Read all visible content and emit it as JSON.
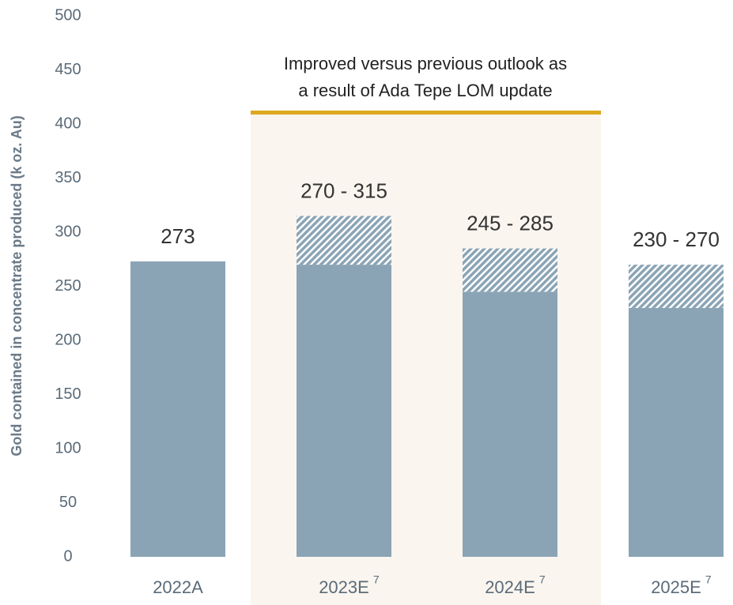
{
  "chart_data": {
    "type": "range_bar",
    "ylabel": "Gold contained in concentrate produced (k oz. Au)",
    "annotation": [
      "Improved versus previous outlook as",
      "a result of Ada Tepe LOM update"
    ],
    "categories": [
      "2022A",
      "2023E",
      "2024E",
      "2025E"
    ],
    "category_notes": [
      null,
      "7",
      "7",
      "7"
    ],
    "low": [
      273,
      270,
      245,
      230
    ],
    "high": [
      null,
      315,
      285,
      270
    ],
    "value_labels": [
      "273",
      "270 - 315",
      "245 - 285",
      "230 - 270"
    ],
    "color": "#8aa4b5",
    "ylim": [
      0,
      500
    ],
    "yticks": [
      0,
      50,
      100,
      150,
      200,
      250,
      300,
      350,
      400,
      450,
      500
    ]
  }
}
